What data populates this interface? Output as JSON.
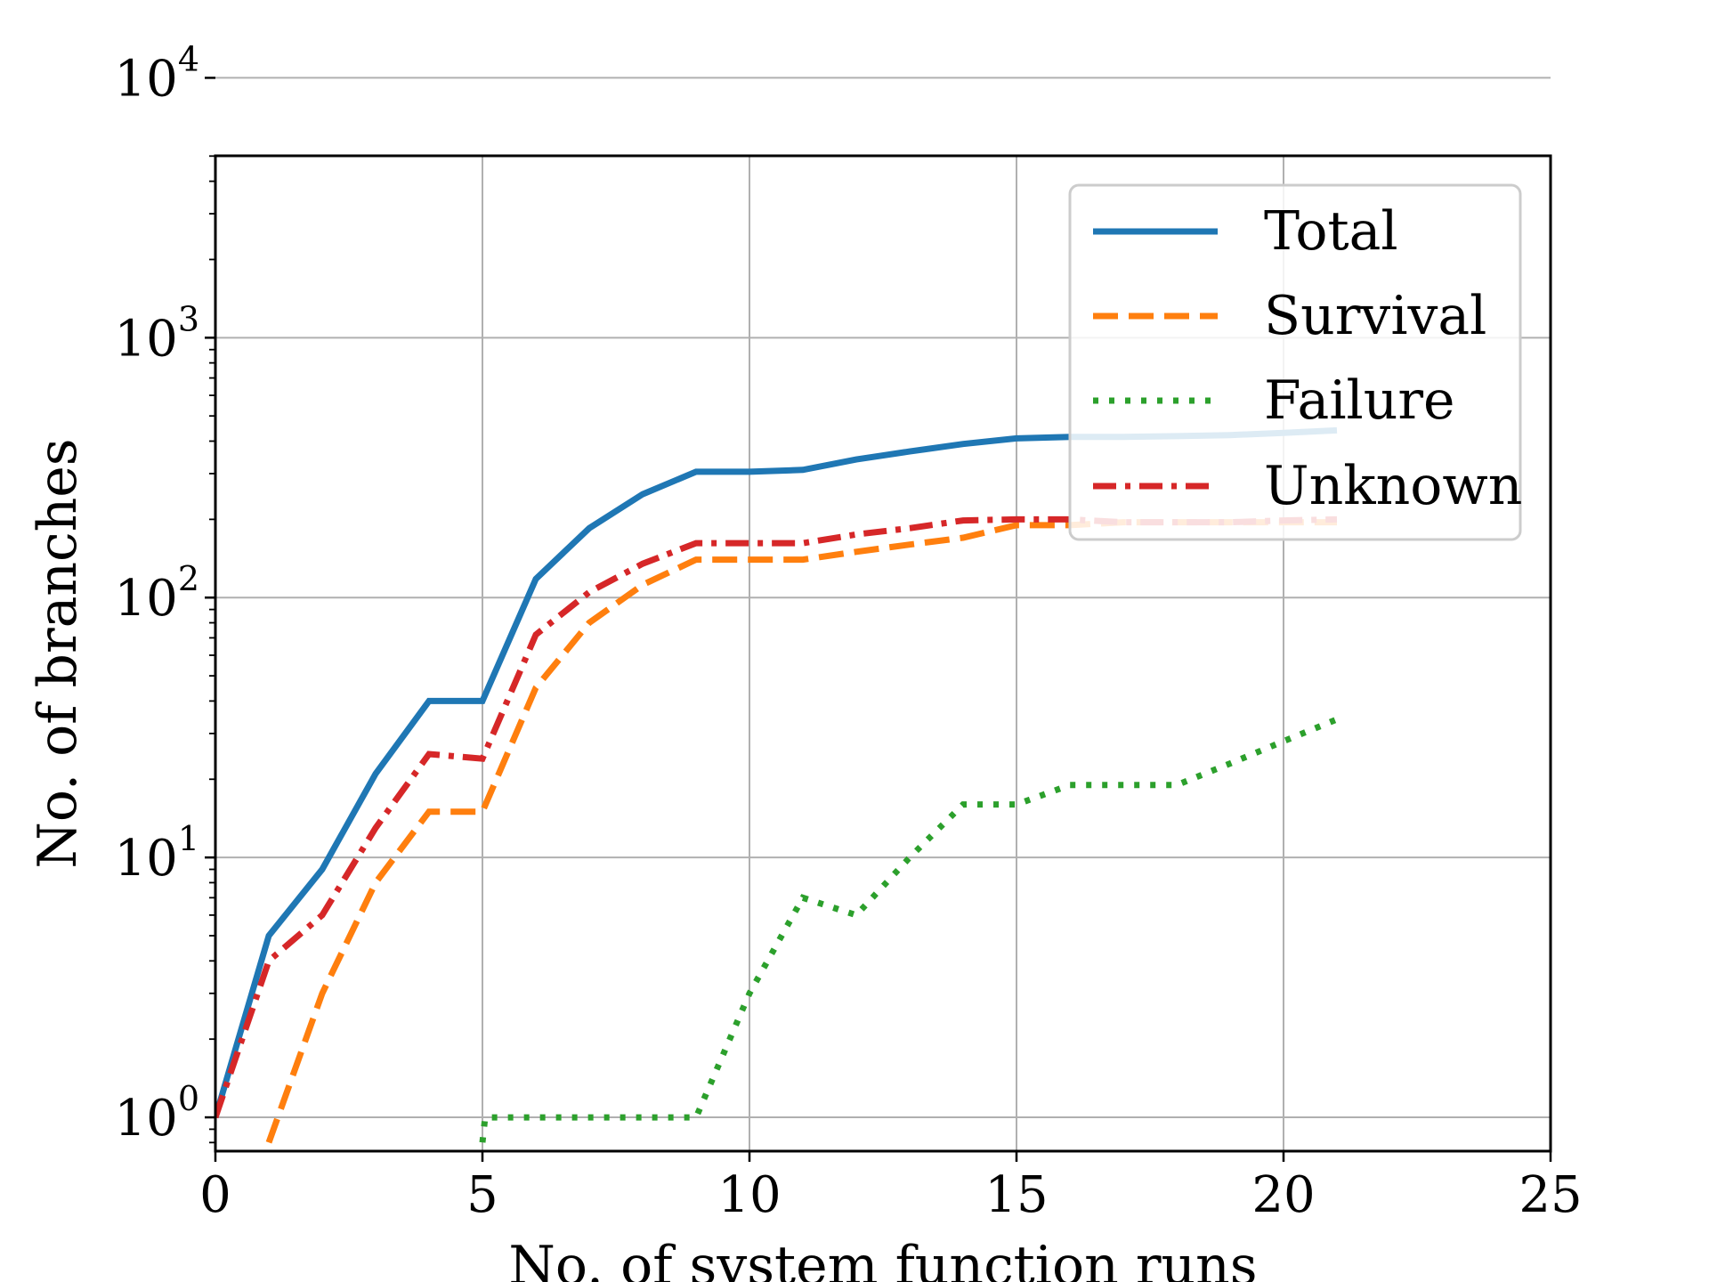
{
  "chart_data": {
    "type": "line",
    "title": "",
    "xlabel": "No. of system function runs",
    "ylabel": "No. of branches",
    "xlim": [
      0,
      25
    ],
    "ylim_log10": [
      -0.13,
      3.7
    ],
    "yscale": "log",
    "grid": true,
    "legend_position": "top-right",
    "x_ticks": [
      0,
      5,
      10,
      15,
      20,
      25
    ],
    "x_tick_labels": [
      "0",
      "5",
      "10",
      "15",
      "20",
      "25"
    ],
    "y_ticks": [
      {
        "value": 1,
        "base": "10",
        "exp": "0"
      },
      {
        "value": 10,
        "base": "10",
        "exp": "1"
      },
      {
        "value": 100,
        "base": "10",
        "exp": "2"
      },
      {
        "value": 1000,
        "base": "10",
        "exp": "3"
      },
      {
        "value": 10000,
        "base": "10",
        "exp": "4"
      }
    ],
    "series": [
      {
        "name": "Total",
        "color": "#1f77b4",
        "style": "solid",
        "x": [
          0,
          1,
          2,
          3,
          4,
          5,
          6,
          7,
          8,
          9,
          10,
          11,
          12,
          13,
          14,
          15,
          16,
          17,
          18,
          19,
          20,
          21
        ],
        "values": [
          1,
          5,
          9,
          21,
          40,
          40,
          118,
          185,
          250,
          305,
          305,
          310,
          340,
          365,
          390,
          410,
          415,
          415,
          418,
          422,
          430,
          440
        ]
      },
      {
        "name": "Survival",
        "color": "#ff7f0e",
        "style": "dashed",
        "x": [
          1,
          2,
          3,
          4,
          5,
          6,
          7,
          8,
          9,
          10,
          11,
          12,
          13,
          14,
          15,
          16,
          17,
          18,
          19,
          20,
          21
        ],
        "values": [
          0.8,
          3,
          8,
          15,
          15,
          45,
          80,
          112,
          140,
          140,
          140,
          150,
          160,
          170,
          190,
          190,
          195,
          195,
          195,
          195,
          195
        ]
      },
      {
        "name": "Failure",
        "color": "#2ca02c",
        "style": "dotted",
        "x": [
          5,
          5.05,
          6,
          7,
          8,
          9,
          10,
          11,
          12,
          13,
          14,
          15,
          16,
          17,
          18,
          19,
          20,
          21
        ],
        "values": [
          0.8,
          1,
          1,
          1,
          1,
          1,
          3,
          7,
          6,
          10,
          16,
          16,
          19,
          19,
          19,
          23,
          28,
          34
        ]
      },
      {
        "name": "Unknown",
        "color": "#d62728",
        "style": "dashdot",
        "x": [
          0,
          1,
          2,
          3,
          4,
          5,
          6,
          7,
          8,
          9,
          10,
          11,
          12,
          13,
          14,
          15,
          16,
          17,
          18,
          19,
          20,
          21
        ],
        "values": [
          1,
          4,
          6,
          13,
          25,
          24,
          72,
          105,
          135,
          162,
          162,
          162,
          175,
          185,
          198,
          200,
          200,
          195,
          195,
          195,
          198,
          200
        ]
      }
    ]
  }
}
